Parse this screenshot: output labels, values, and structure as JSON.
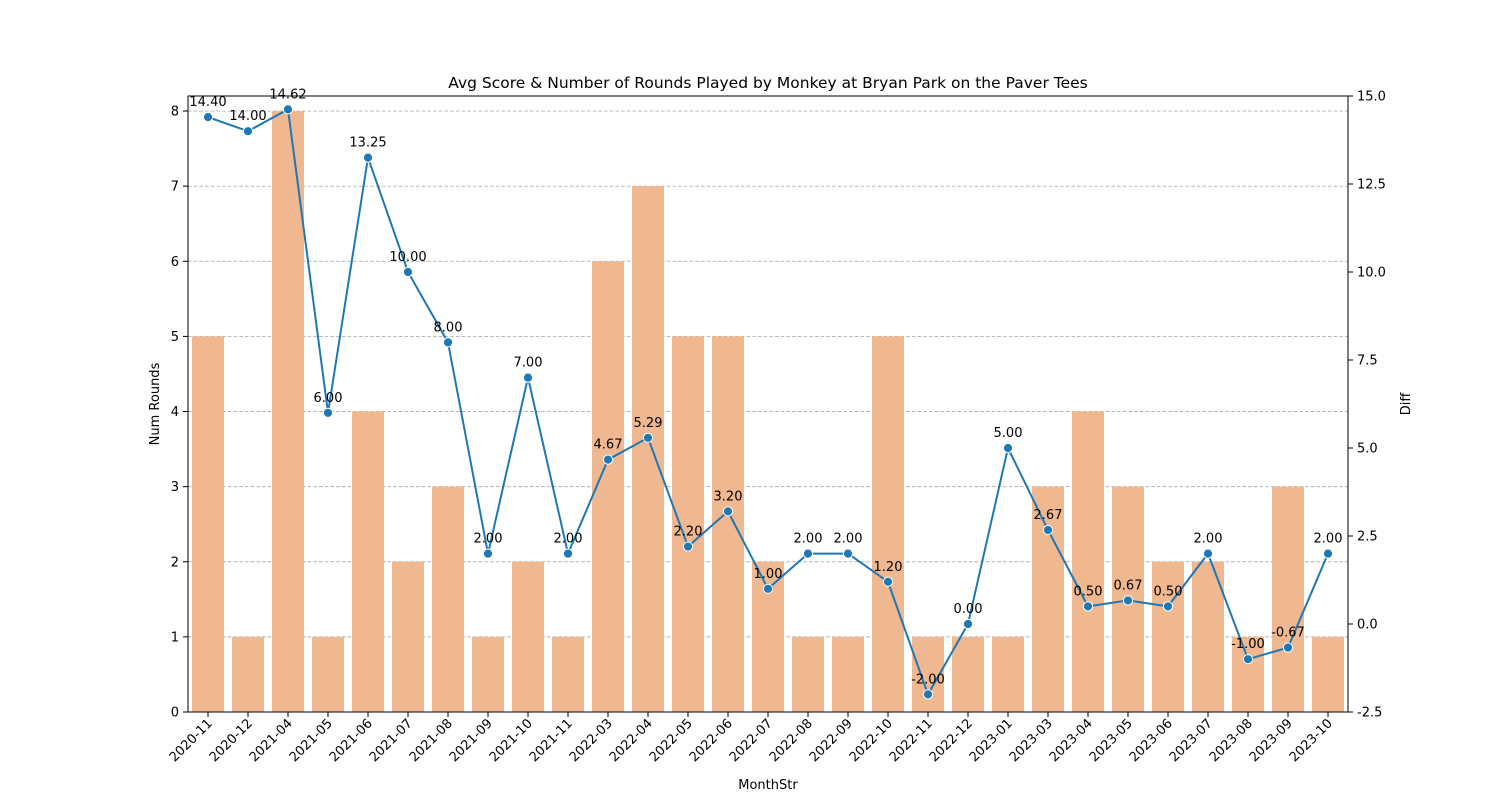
{
  "chart_data": {
    "type": "bar+line",
    "title": "Avg Score & Number of Rounds Played by Monkey at Bryan Park on the Paver Tees",
    "xlabel": "MonthStr",
    "ylabel_left": "Num Rounds",
    "ylabel_right": "Diff",
    "categories": [
      "2020-11",
      "2020-12",
      "2021-04",
      "2021-05",
      "2021-06",
      "2021-07",
      "2021-08",
      "2021-09",
      "2021-10",
      "2021-11",
      "2022-03",
      "2022-04",
      "2022-05",
      "2022-06",
      "2022-07",
      "2022-08",
      "2022-09",
      "2022-10",
      "2022-11",
      "2022-12",
      "2023-01",
      "2023-03",
      "2023-04",
      "2023-05",
      "2023-06",
      "2023-07",
      "2023-08",
      "2023-09",
      "2023-10"
    ],
    "bars": {
      "values": [
        5,
        1,
        8,
        1,
        4,
        2,
        3,
        1,
        2,
        1,
        6,
        7,
        5,
        5,
        2,
        1,
        1,
        5,
        1,
        1,
        1,
        3,
        4,
        3,
        2,
        2,
        1,
        3,
        1
      ],
      "color": "#f0b890"
    },
    "line": {
      "values": [
        14.4,
        14.0,
        14.62,
        6.0,
        13.25,
        10.0,
        8.0,
        2.0,
        7.0,
        2.0,
        4.67,
        5.29,
        2.2,
        3.2,
        1.0,
        2.0,
        2.0,
        1.2,
        -2.0,
        0.0,
        5.0,
        2.67,
        0.5,
        0.67,
        0.5,
        2.0,
        -1.0,
        -0.67,
        2.0
      ],
      "labels": [
        "14.40",
        "14.00",
        "14.62",
        "6.00",
        "13.25",
        "10.00",
        "8.00",
        "2.00",
        "7.00",
        "2.00",
        "4.67",
        "5.29",
        "2.20",
        "3.20",
        "1.00",
        "2.00",
        "2.00",
        "1.20",
        "-2.00",
        "0.00",
        "5.00",
        "2.67",
        "0.50",
        "0.67",
        "0.50",
        "2.00",
        "-1.00",
        "-0.67",
        "2.00"
      ],
      "color": "#1f77b4"
    },
    "ylim_left": [
      0,
      8.2
    ],
    "ylim_right": [
      -2.5,
      15.0
    ],
    "left_ticks": [
      "0",
      "1",
      "2",
      "3",
      "4",
      "5",
      "6",
      "7",
      "8"
    ],
    "right_ticks": [
      "-2.5",
      "0.0",
      "2.5",
      "5.0",
      "7.5",
      "10.0",
      "12.5",
      "15.0"
    ],
    "grid": true,
    "grid_style": "dashed horizontal"
  }
}
